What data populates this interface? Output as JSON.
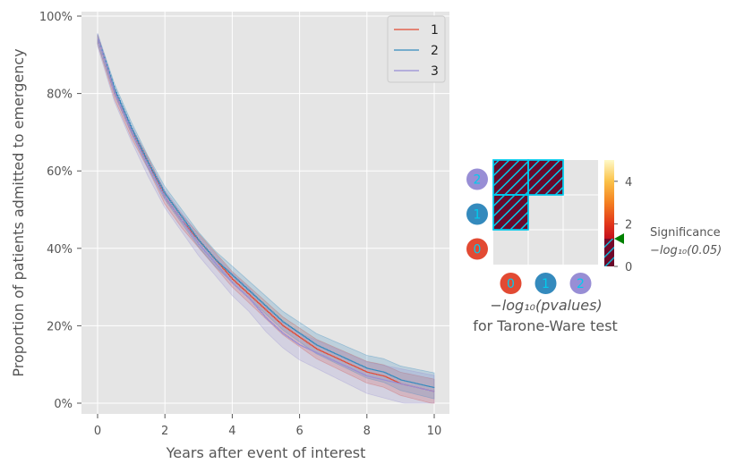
{
  "chart_data": [
    {
      "type": "line",
      "subtype": "kaplan-meier-step",
      "xlabel": "Years after event of interest",
      "ylabel": "Proportion of patients admitted to emergency",
      "xlim": [
        0,
        10
      ],
      "ylim": [
        0,
        1
      ],
      "xticks": [
        "0",
        "2",
        "4",
        "6",
        "8",
        "10"
      ],
      "yticks": [
        "0%",
        "20%",
        "40%",
        "60%",
        "80%",
        "100%"
      ],
      "grid": true,
      "legend": "top-right",
      "confidence_bands": true,
      "x": [
        0,
        0.5,
        1,
        1.5,
        2,
        2.5,
        3,
        3.5,
        4,
        4.5,
        5,
        5.5,
        6,
        6.5,
        7,
        7.5,
        8,
        8.5,
        9,
        9.5,
        10
      ],
      "series": [
        {
          "name": "1",
          "color": "#E24A33",
          "values": [
            0.94,
            0.8,
            0.7,
            0.62,
            0.53,
            0.47,
            0.42,
            0.37,
            0.32,
            0.28,
            0.24,
            0.2,
            0.17,
            0.14,
            0.12,
            0.1,
            0.08,
            0.07,
            0.05,
            0.04,
            0.03
          ]
        },
        {
          "name": "2",
          "color": "#348ABD",
          "values": [
            0.94,
            0.81,
            0.71,
            0.62,
            0.54,
            0.48,
            0.42,
            0.37,
            0.33,
            0.29,
            0.25,
            0.21,
            0.18,
            0.15,
            0.13,
            0.11,
            0.09,
            0.08,
            0.06,
            0.05,
            0.04
          ]
        },
        {
          "name": "3",
          "color": "#988ED5",
          "values": [
            0.94,
            0.8,
            0.7,
            0.61,
            0.53,
            0.47,
            0.41,
            0.36,
            0.31,
            0.27,
            0.22,
            0.18,
            0.15,
            0.13,
            0.11,
            0.09,
            0.07,
            0.06,
            0.05,
            0.04,
            0.03
          ]
        }
      ]
    },
    {
      "type": "heatmap",
      "xlabel_math": "−log₁₀(pvalues)",
      "xlabel_line2": "for Tarone-Ware test",
      "row_labels": [
        "2",
        "1",
        "0"
      ],
      "col_labels": [
        "0",
        "1",
        "2"
      ],
      "label_colors": {
        "0": "#E24A33",
        "1": "#348ABD",
        "2": "#988ED5"
      },
      "label_text_color": "#00CCEE",
      "cells": [
        [
          0.05,
          0.05,
          null
        ],
        [
          0.05,
          null,
          null
        ],
        [
          null,
          null,
          null
        ]
      ],
      "hatched_cells": [
        [
          0,
          0
        ],
        [
          0,
          1
        ],
        [
          1,
          0
        ]
      ],
      "colorbar": {
        "ticks": [
          "0",
          "2",
          "4"
        ],
        "range": [
          0,
          5
        ],
        "colors": [
          "#5a0019",
          "#b5001f",
          "#e2361a",
          "#f48021",
          "#fbc248",
          "#fef9c8"
        ]
      },
      "significance": {
        "label": "Significance",
        "value_label": "−log₁₀(0.05)",
        "value": 1.301,
        "marker_color": "#008000"
      }
    }
  ]
}
